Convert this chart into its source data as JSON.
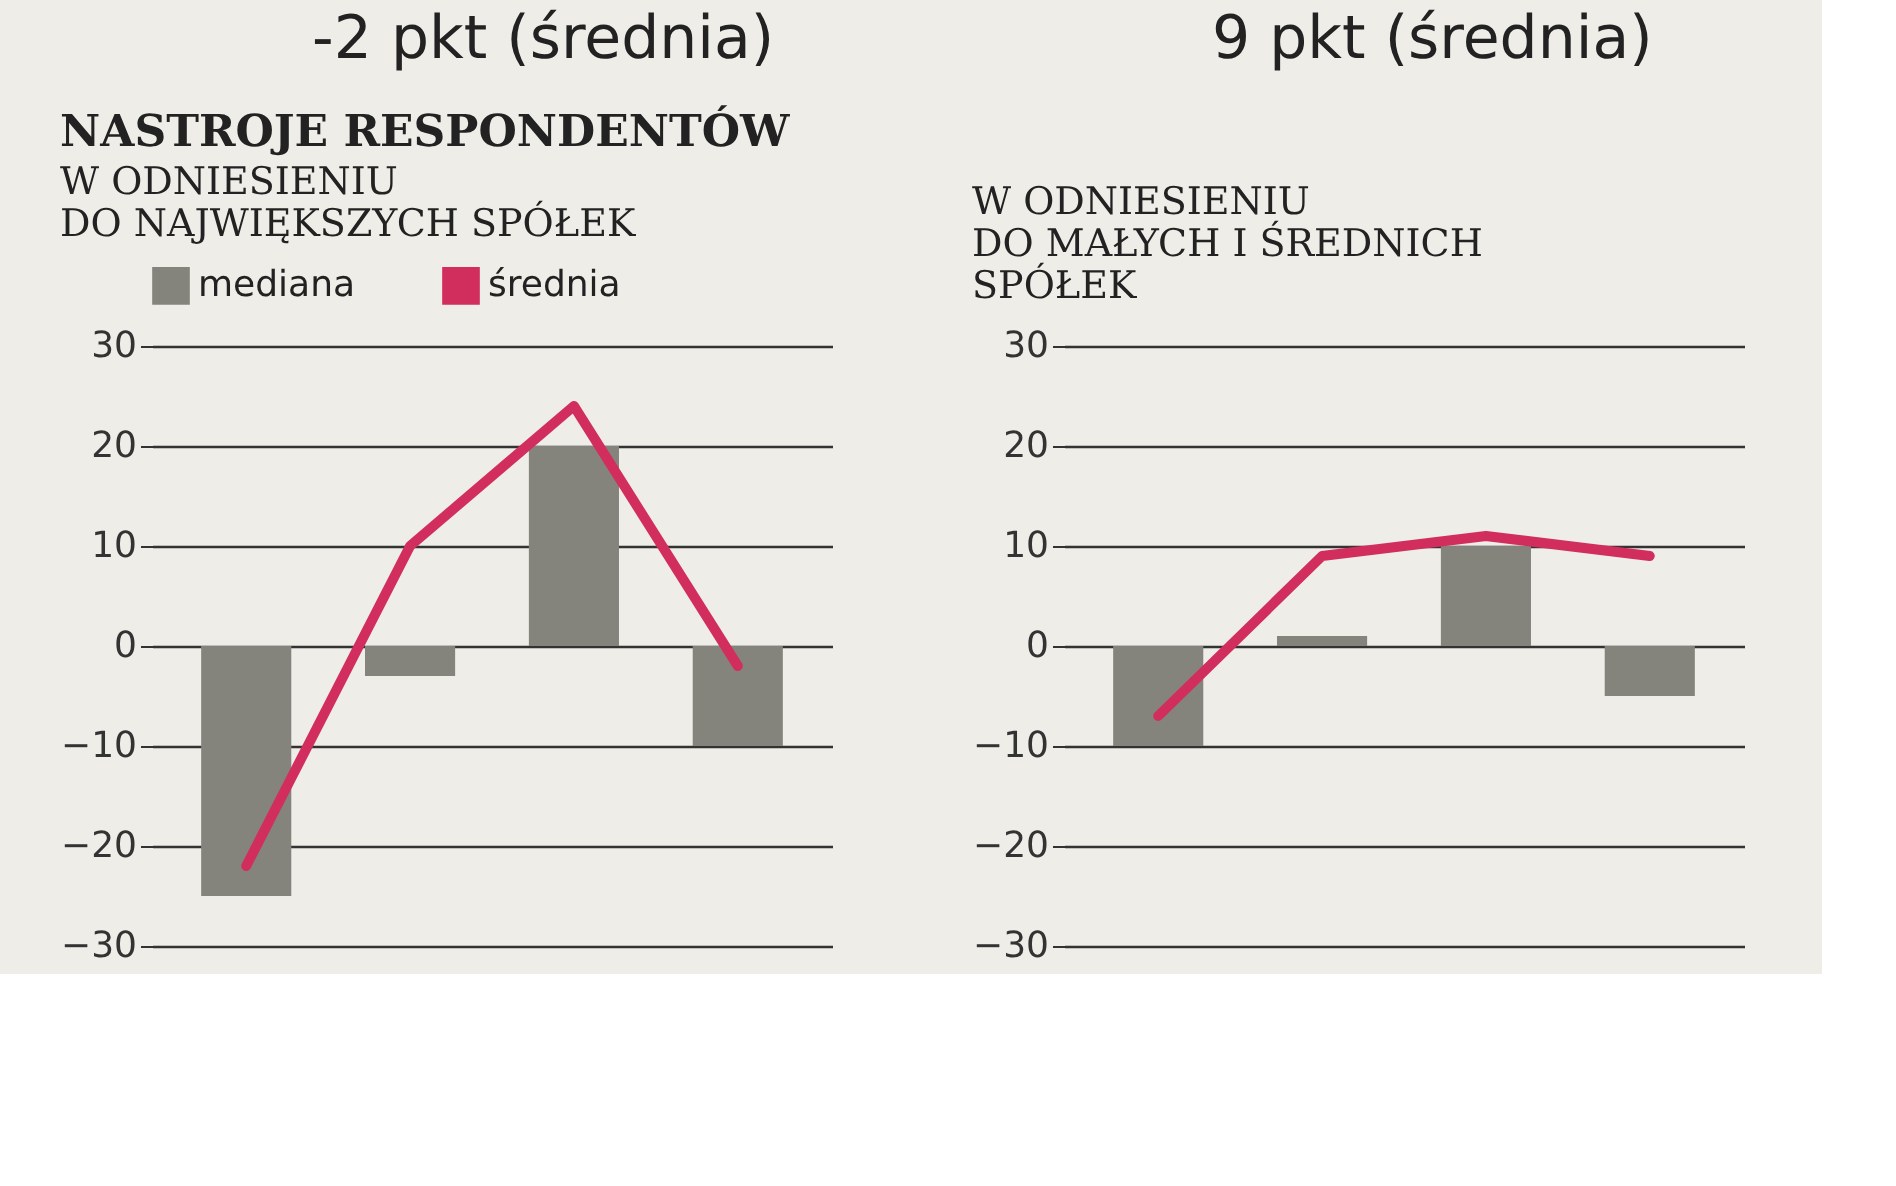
{
  "chart_data": [
    {
      "type": "bar",
      "title": "NASTROJE RESPONDENTÓW",
      "subtitle": "W ODNIESIENIU\nDO NAJWIĘKSZYCH SPÓŁEK",
      "annotations": [
        "-2 pkt (średnia)"
      ],
      "categories": [
        null,
        null,
        null,
        null
      ],
      "series": [
        {
          "name": "mediana",
          "color": "#85847c",
          "values": [
            -25,
            -3,
            20,
            -10
          ]
        },
        {
          "name": "średnia",
          "type": "line",
          "color": "#d12e5e",
          "values": [
            -22,
            10,
            24,
            -2
          ]
        }
      ],
      "ylim": [
        -30,
        30
      ],
      "yticks": [
        -30,
        -20,
        -10,
        0,
        10,
        20,
        30
      ],
      "grid": "y",
      "legend": "top",
      "tick_labels": "y",
      "marker": "none",
      "line_style": "solid"
    },
    {
      "type": "bar",
      "subtitle": "W ODNIESIENIU\nDO MAŁYCH I ŚREDNICH\nSPÓŁEK",
      "annotations": [
        "9 pkt (średnia)"
      ],
      "categories": [
        null,
        null,
        null,
        null
      ],
      "series": [
        {
          "color": "#85847c",
          "values": [
            -10,
            1,
            10,
            -5
          ]
        },
        {
          "type": "line",
          "color": "#d12e5e",
          "values": [
            -7,
            9,
            11,
            9
          ]
        }
      ],
      "ylim": [
        -30,
        30
      ],
      "yticks": [
        -30,
        -20,
        -10,
        0,
        10,
        20,
        30
      ],
      "grid": "y",
      "tick_labels": "y",
      "marker": "none",
      "line_style": "solid"
    }
  ]
}
